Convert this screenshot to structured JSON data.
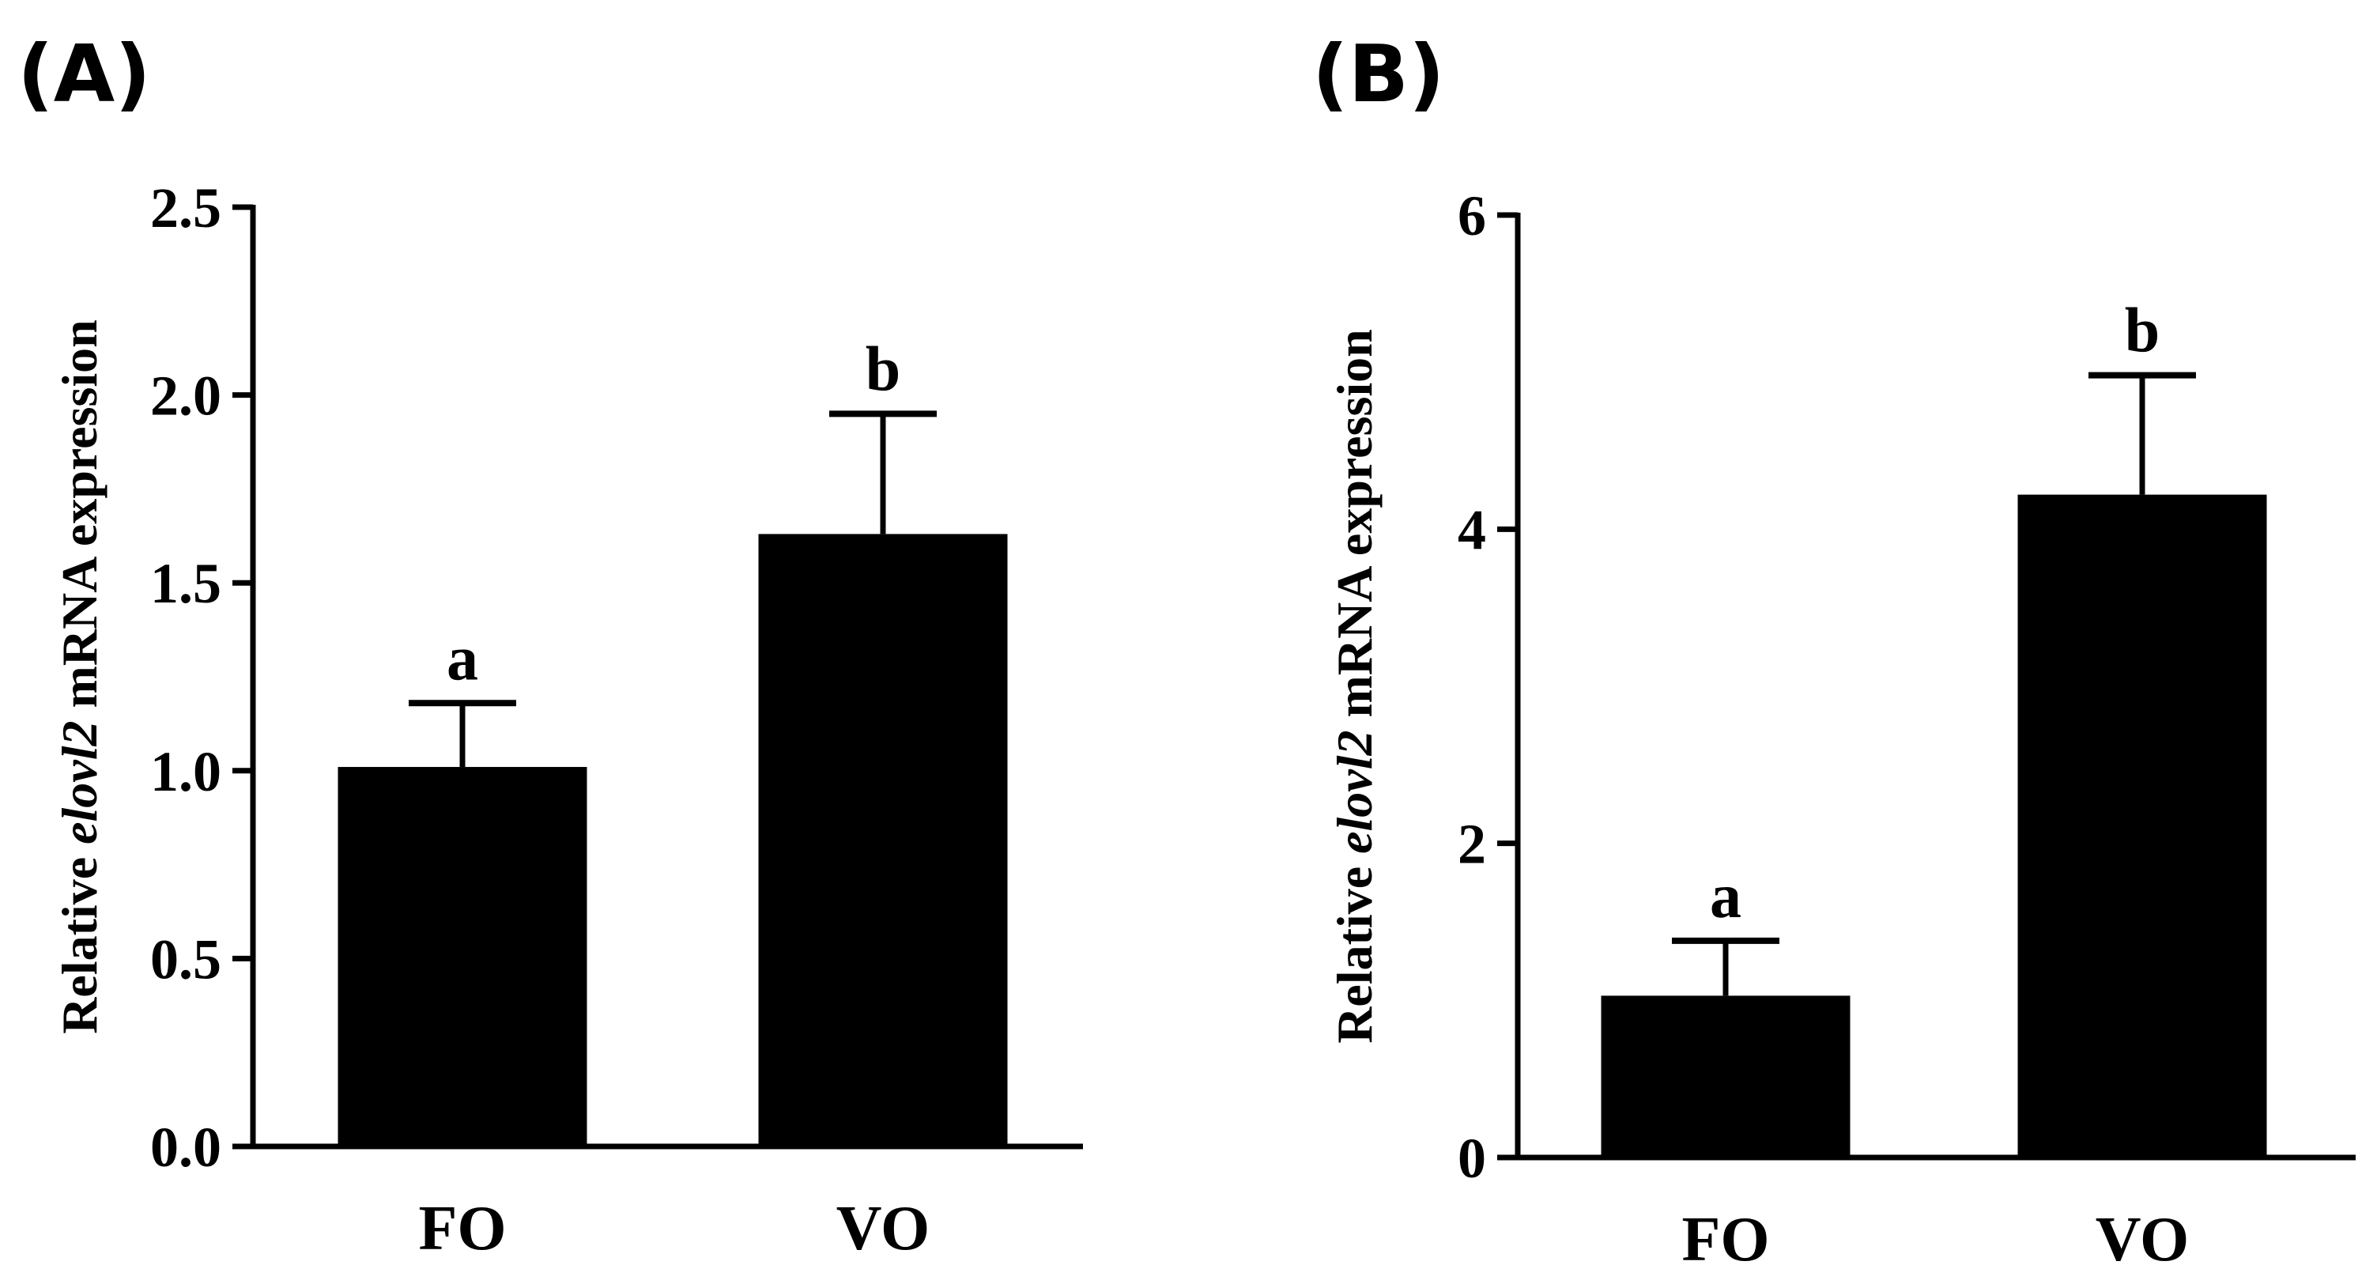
{
  "chart_data": [
    {
      "panel": "(A)",
      "type": "bar",
      "ylabel_prefix": "Relative ",
      "ylabel_gene": "elovl2",
      "ylabel_suffix": " mRNA expression",
      "categories": [
        "FO",
        "VO"
      ],
      "values": [
        1.01,
        1.63
      ],
      "errors": [
        0.17,
        0.32
      ],
      "significance": [
        "a",
        "b"
      ],
      "ylim": [
        0,
        2.5
      ],
      "yticks": [
        0.0,
        0.5,
        1.0,
        1.5,
        2.0,
        2.5
      ],
      "ytick_labels": [
        "0.0",
        "0.5",
        "1.0",
        "1.5",
        "2.0",
        "2.5"
      ],
      "bar_color": "#000000",
      "grid": false
    },
    {
      "panel": "(B)",
      "type": "bar",
      "ylabel_prefix": "Relative ",
      "ylabel_gene": "elovl2",
      "ylabel_suffix": " mRNA expression",
      "categories": [
        "FO",
        "VO"
      ],
      "values": [
        1.03,
        4.22
      ],
      "errors": [
        0.35,
        0.76
      ],
      "significance": [
        "a",
        "b"
      ],
      "ylim": [
        0,
        6
      ],
      "yticks": [
        0,
        2,
        4,
        6
      ],
      "ytick_labels": [
        "0",
        "2",
        "4",
        "6"
      ],
      "bar_color": "#000000",
      "grid": false
    }
  ]
}
